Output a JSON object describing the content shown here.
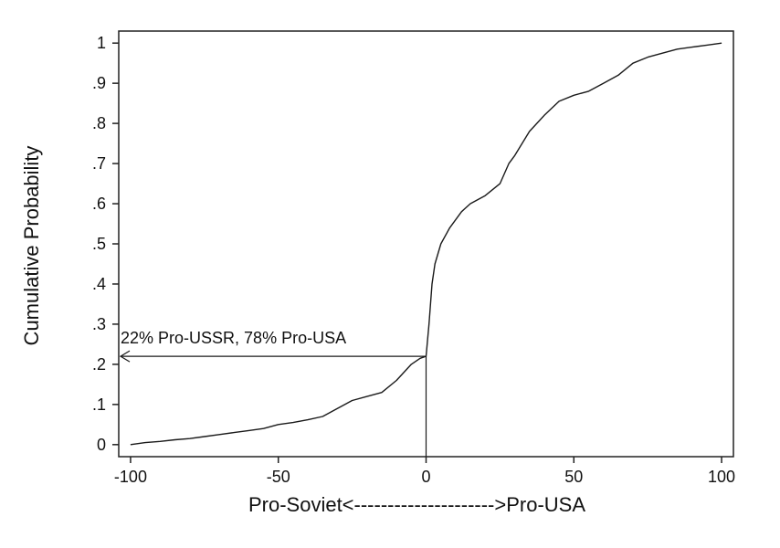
{
  "chart_data": {
    "type": "line",
    "title": "",
    "xlabel": "Pro-Soviet<--------------------->Pro-USA",
    "ylabel": "Cumulative Probability",
    "xlim": [
      -104,
      104
    ],
    "ylim": [
      -0.03,
      1.03
    ],
    "xticks": [
      -100,
      -50,
      0,
      50,
      100
    ],
    "xtick_labels": [
      "-100",
      "-50",
      "0",
      "50",
      "100"
    ],
    "yticks": [
      0,
      0.1,
      0.2,
      0.3,
      0.4,
      0.5,
      0.6,
      0.7,
      0.8,
      0.9,
      1.0
    ],
    "ytick_labels": [
      "0",
      ".1",
      ".2",
      ".3",
      ".4",
      ".5",
      ".6",
      ".7",
      ".8",
      ".9",
      "1"
    ],
    "grid": false,
    "legend": "none",
    "series": [
      {
        "x": [
          -100,
          -95,
          -90,
          -85,
          -80,
          -75,
          -70,
          -65,
          -60,
          -55,
          -50,
          -45,
          -40,
          -35,
          -30,
          -25,
          -20,
          -15,
          -10,
          -5,
          -2,
          0,
          1,
          2,
          3,
          5,
          8,
          10,
          12,
          15,
          20,
          25,
          28,
          30,
          35,
          40,
          45,
          50,
          55,
          60,
          65,
          70,
          75,
          80,
          85,
          90,
          95,
          100
        ],
        "y": [
          0.0,
          0.005,
          0.008,
          0.012,
          0.015,
          0.02,
          0.025,
          0.03,
          0.035,
          0.04,
          0.05,
          0.055,
          0.062,
          0.07,
          0.09,
          0.11,
          0.12,
          0.13,
          0.16,
          0.2,
          0.215,
          0.22,
          0.3,
          0.4,
          0.45,
          0.5,
          0.54,
          0.56,
          0.58,
          0.6,
          0.62,
          0.65,
          0.7,
          0.72,
          0.78,
          0.82,
          0.855,
          0.87,
          0.88,
          0.9,
          0.92,
          0.95,
          0.965,
          0.975,
          0.985,
          0.99,
          0.995,
          1.0
        ]
      }
    ],
    "annotations": [
      {
        "text": "22% Pro-USSR, 78% Pro-USA",
        "x": 0,
        "y": 0.22
      }
    ]
  }
}
